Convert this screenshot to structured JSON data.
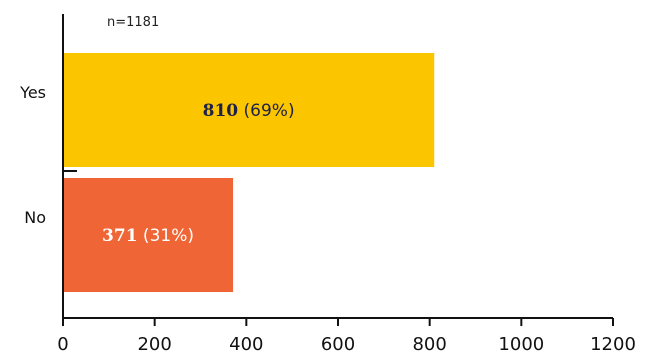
{
  "chart_data": {
    "type": "bar",
    "orientation": "horizontal",
    "note": "n=1181",
    "categories": [
      "Yes",
      "No"
    ],
    "values": [
      810,
      371
    ],
    "percent_labels": [
      "(69%)",
      "(31%)"
    ],
    "colors": [
      "#fbc500",
      "#ef6535"
    ],
    "label_colors": [
      "#1e2148",
      "#ffffff"
    ],
    "xlim": [
      0,
      1200
    ],
    "xticks": [
      0,
      200,
      400,
      600,
      800,
      1000,
      1200
    ],
    "grid": false,
    "legend": "none"
  }
}
